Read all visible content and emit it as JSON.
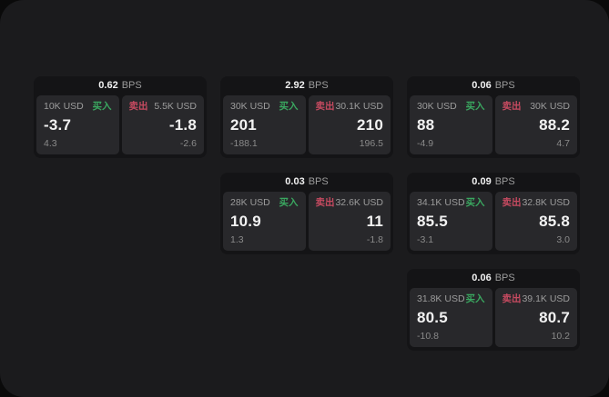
{
  "board": {
    "cards": [
      {
        "bps": "0.62",
        "bps_unit": "BPS",
        "buy": {
          "label": "买入",
          "size": "10K USD",
          "price": "-3.7",
          "delta": "4.3"
        },
        "sell": {
          "label": "卖出",
          "size": "5.5K USD",
          "price": "-1.8",
          "delta": "-2.6"
        }
      },
      {
        "bps": "2.92",
        "bps_unit": "BPS",
        "buy": {
          "label": "买入",
          "size": "30K USD",
          "price": "201",
          "delta": "-188.1"
        },
        "sell": {
          "label": "卖出",
          "size": "30.1K USD",
          "price": "210",
          "delta": "196.5"
        }
      },
      {
        "bps": "0.06",
        "bps_unit": "BPS",
        "buy": {
          "label": "买入",
          "size": "30K USD",
          "price": "88",
          "delta": "-4.9"
        },
        "sell": {
          "label": "卖出",
          "size": "30K USD",
          "price": "88.2",
          "delta": "4.7"
        }
      },
      {
        "bps": "0.03",
        "bps_unit": "BPS",
        "buy": {
          "label": "买入",
          "size": "28K USD",
          "price": "10.9",
          "delta": "1.3"
        },
        "sell": {
          "label": "卖出",
          "size": "32.6K USD",
          "price": "11",
          "delta": "-1.8"
        }
      },
      {
        "bps": "0.09",
        "bps_unit": "BPS",
        "buy": {
          "label": "买入",
          "size": "34.1K USD",
          "price": "85.5",
          "delta": "-3.1"
        },
        "sell": {
          "label": "卖出",
          "size": "32.8K USD",
          "price": "85.8",
          "delta": "3.0"
        }
      },
      {
        "bps": "0.06",
        "bps_unit": "BPS",
        "buy": {
          "label": "买入",
          "size": "31.8K USD",
          "price": "80.5",
          "delta": "-10.8"
        },
        "sell": {
          "label": "卖出",
          "size": "39.1K USD",
          "price": "80.7",
          "delta": "10.2"
        }
      }
    ]
  },
  "colors": {
    "buy": "#3aa760",
    "sell": "#c64a60",
    "panel": "#1b1b1d",
    "card": "#141416",
    "tile": "#28282b"
  }
}
